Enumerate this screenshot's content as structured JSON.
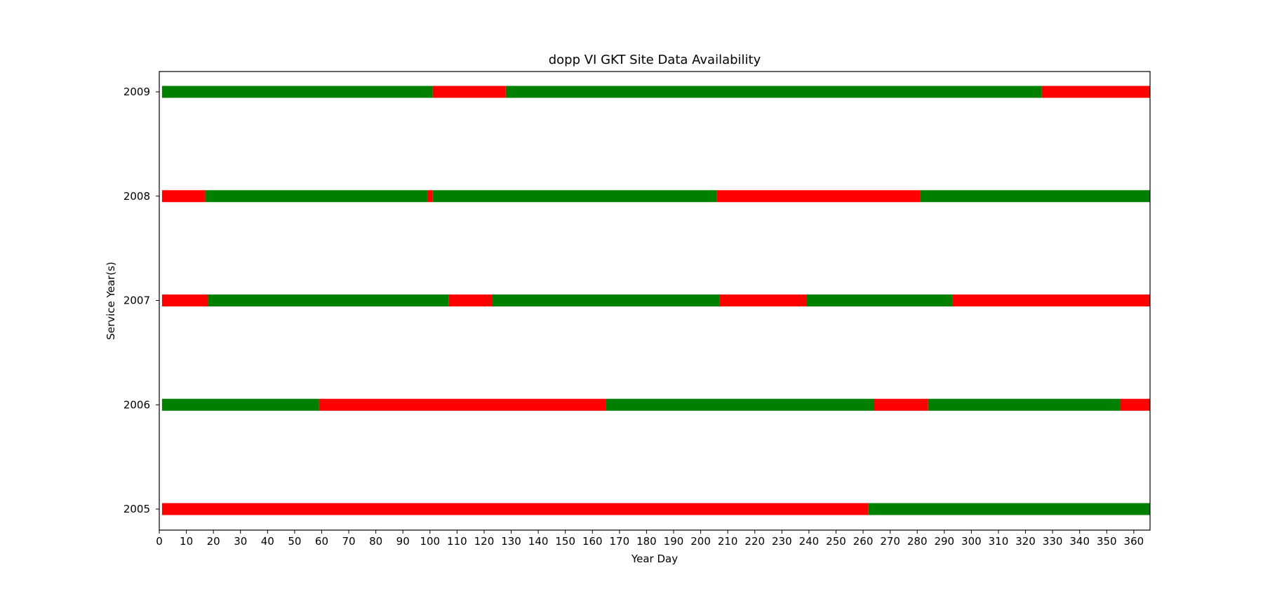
{
  "chart_data": {
    "type": "bar",
    "orientation": "horizontal-broken-bar",
    "title": "dopp VI GKT Site Data Availability",
    "xlabel": "Year Day",
    "ylabel": "Service Year(s)",
    "xlim": [
      0,
      366
    ],
    "x_ticks": [
      0,
      10,
      20,
      30,
      40,
      50,
      60,
      70,
      80,
      90,
      100,
      110,
      120,
      130,
      140,
      150,
      160,
      170,
      180,
      190,
      200,
      210,
      220,
      230,
      240,
      250,
      260,
      270,
      280,
      290,
      300,
      310,
      320,
      330,
      340,
      350,
      360
    ],
    "grid": false,
    "colors": {
      "available": "#008000",
      "missing": "#ff0000"
    },
    "rows": [
      {
        "year": "2009",
        "segments": [
          {
            "start": 1,
            "end": 101,
            "status": "available"
          },
          {
            "start": 101,
            "end": 128,
            "status": "missing"
          },
          {
            "start": 128,
            "end": 326,
            "status": "available"
          },
          {
            "start": 326,
            "end": 366,
            "status": "missing"
          }
        ]
      },
      {
        "year": "2008",
        "segments": [
          {
            "start": 1,
            "end": 17,
            "status": "missing"
          },
          {
            "start": 17,
            "end": 99,
            "status": "available"
          },
          {
            "start": 99,
            "end": 101,
            "status": "missing"
          },
          {
            "start": 101,
            "end": 206,
            "status": "available"
          },
          {
            "start": 206,
            "end": 281,
            "status": "missing"
          },
          {
            "start": 281,
            "end": 366,
            "status": "available"
          }
        ]
      },
      {
        "year": "2007",
        "segments": [
          {
            "start": 1,
            "end": 18,
            "status": "missing"
          },
          {
            "start": 18,
            "end": 107,
            "status": "available"
          },
          {
            "start": 107,
            "end": 123,
            "status": "missing"
          },
          {
            "start": 123,
            "end": 207,
            "status": "available"
          },
          {
            "start": 207,
            "end": 239,
            "status": "missing"
          },
          {
            "start": 239,
            "end": 293,
            "status": "available"
          },
          {
            "start": 293,
            "end": 366,
            "status": "missing"
          }
        ]
      },
      {
        "year": "2006",
        "segments": [
          {
            "start": 1,
            "end": 59,
            "status": "available"
          },
          {
            "start": 59,
            "end": 165,
            "status": "missing"
          },
          {
            "start": 165,
            "end": 264,
            "status": "available"
          },
          {
            "start": 264,
            "end": 284,
            "status": "missing"
          },
          {
            "start": 284,
            "end": 355,
            "status": "available"
          },
          {
            "start": 355,
            "end": 366,
            "status": "missing"
          }
        ]
      },
      {
        "year": "2005",
        "segments": [
          {
            "start": 1,
            "end": 262,
            "status": "missing"
          },
          {
            "start": 262,
            "end": 366,
            "status": "available"
          }
        ]
      }
    ]
  }
}
